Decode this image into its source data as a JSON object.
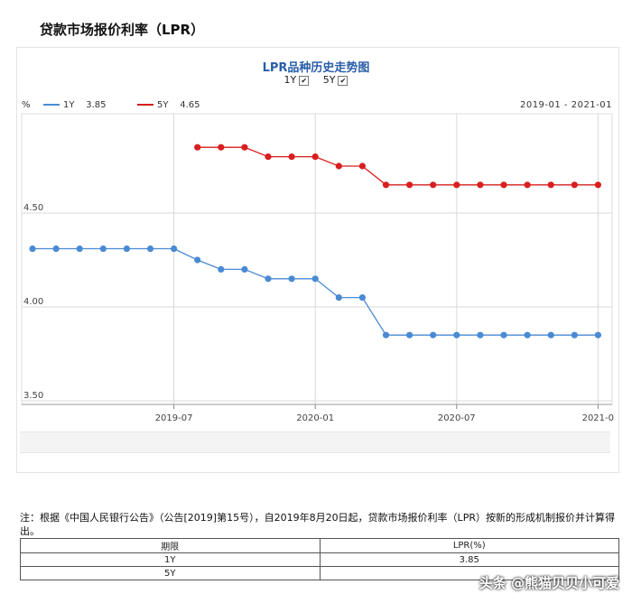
{
  "header": {
    "title": "贷款市场报价利率（LPR）"
  },
  "chart_controls": {
    "toggles": [
      {
        "label": "1Y",
        "checked": true
      },
      {
        "label": "5Y",
        "checked": true
      }
    ]
  },
  "chart_data": {
    "type": "line",
    "title": "LPR品种历史走势图",
    "unit_label": "%",
    "range_label": "2019-01 - 2021-01",
    "x": [
      "2019-01",
      "2019-02",
      "2019-03",
      "2019-04",
      "2019-05",
      "2019-06",
      "2019-07",
      "2019-08",
      "2019-09",
      "2019-10",
      "2019-11",
      "2019-12",
      "2020-01",
      "2020-02",
      "2020-03",
      "2020-04",
      "2020-05",
      "2020-06",
      "2020-07",
      "2020-08",
      "2020-09",
      "2020-10",
      "2020-11",
      "2020-12",
      "2021-01"
    ],
    "x_tick_labels": [
      "2019-07",
      "2020-01",
      "2020-07",
      "2021-0"
    ],
    "y_tick_labels": [
      "3.50",
      "4.00",
      "4.50"
    ],
    "ylim": [
      3.5,
      5.0
    ],
    "grid": true,
    "series": [
      {
        "name": "1Y",
        "legend_value": "3.85",
        "color": "#4a8ad4",
        "values": [
          4.31,
          4.31,
          4.31,
          4.31,
          4.31,
          4.31,
          4.31,
          4.25,
          4.2,
          4.2,
          4.15,
          4.15,
          4.15,
          4.05,
          4.05,
          3.85,
          3.85,
          3.85,
          3.85,
          3.85,
          3.85,
          3.85,
          3.85,
          3.85,
          3.85
        ]
      },
      {
        "name": "5Y",
        "legend_value": "4.65",
        "color": "#d81e1e",
        "values": [
          null,
          null,
          null,
          null,
          null,
          null,
          null,
          4.85,
          4.85,
          4.85,
          4.8,
          4.8,
          4.8,
          4.75,
          4.75,
          4.65,
          4.65,
          4.65,
          4.65,
          4.65,
          4.65,
          4.65,
          4.65,
          4.65,
          4.65
        ]
      }
    ]
  },
  "note": "注：根据《中国人民银行公告》（公告[2019]第15号），自2019年8月20日起，贷款市场报价利率（LPR）按新的形成机制报价并计算得出。",
  "table": {
    "headers": [
      "期限",
      "LPR(%)"
    ],
    "rows": [
      [
        "1Y",
        "3.85"
      ],
      [
        "5Y",
        ""
      ]
    ]
  },
  "watermark": "头条 @熊猫贝贝小可爱"
}
